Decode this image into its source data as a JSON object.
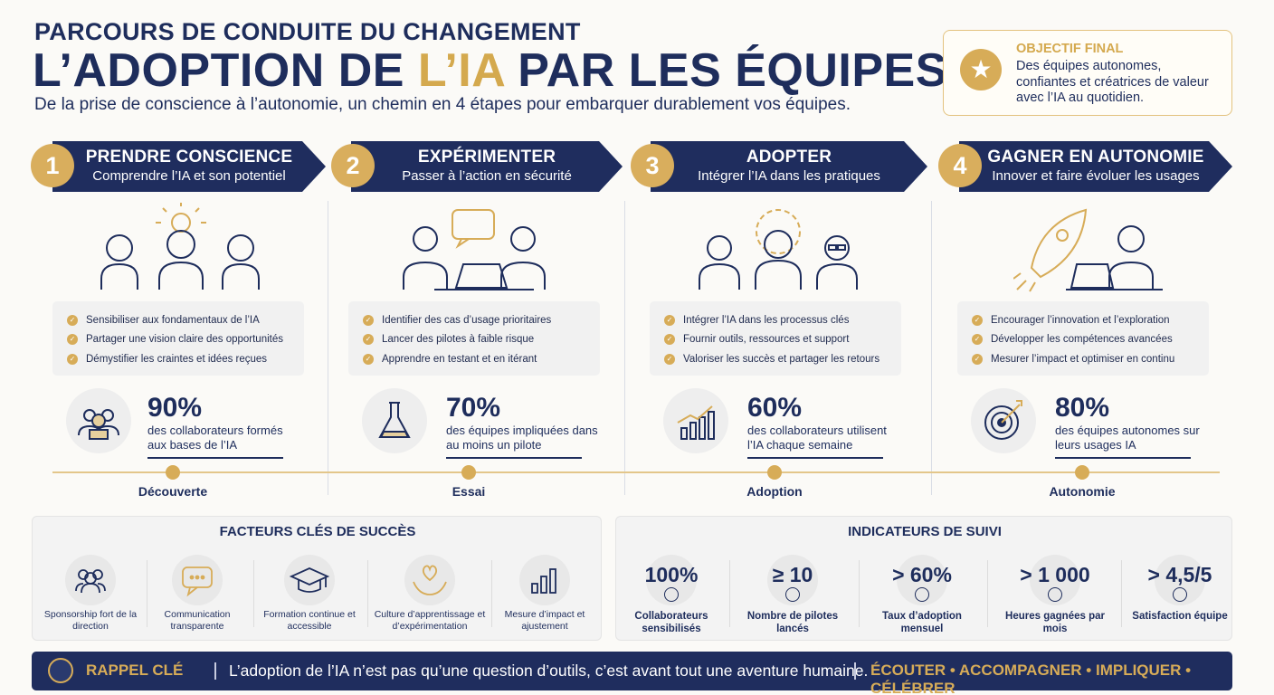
{
  "header": {
    "kicker": "PARCOURS DE CONDUITE DU CHANGEMENT",
    "title_part1": "L’ADOPTION DE ",
    "title_highlight": "L’IA",
    "title_part2": " PAR LES ÉQUIPES",
    "subtitle": "De la prise de conscience à l’autonomie, un chemin en 4 étapes pour embarquer durablement vos équipes."
  },
  "objective": {
    "label": "OBJECTIF FINAL",
    "text": "Des équipes autonomes, confiantes et créatrices de valeur avec l’IA au quotidien.",
    "icon": "star-icon"
  },
  "steps": [
    {
      "number": "1",
      "title": "PRENDRE CONSCIENCE",
      "subtitle": "Comprendre l’IA et son potentiel",
      "checklist": [
        "Sensibiliser aux fondamentaux de l’IA",
        "Partager une vision claire des opportunités",
        "Démystifier les craintes et idées reçues"
      ],
      "stat_value": "90%",
      "stat_text": "des collaborateurs formés aux bases de l’IA",
      "stage_label": "Découverte",
      "icon": "people-lightbulb-icon",
      "stat_icon": "group-icon"
    },
    {
      "number": "2",
      "title": "EXPÉRIMENTER",
      "subtitle": "Passer à l’action en sécurité",
      "checklist": [
        "Identifier des cas d’usage prioritaires",
        "Lancer des pilotes à faible risque",
        "Apprendre en testant et en itérant"
      ],
      "stat_value": "70%",
      "stat_text": "des équipes impliquées dans au moins un pilote",
      "stage_label": "Essai",
      "icon": "collaboration-laptop-icon",
      "stat_icon": "flask-icon"
    },
    {
      "number": "3",
      "title": "ADOPTER",
      "subtitle": "Intégrer l’IA dans les pratiques",
      "checklist": [
        "Intégrer l’IA dans les processus clés",
        "Fournir outils, ressources et support",
        "Valoriser les succès et partager les retours"
      ],
      "stat_value": "60%",
      "stat_text": "des collaborateurs utilisent l’IA chaque semaine",
      "stage_label": "Adoption",
      "icon": "team-gear-icon",
      "stat_icon": "growth-chart-icon"
    },
    {
      "number": "4",
      "title": "GAGNER EN AUTONOMIE",
      "subtitle": "Innover et faire évoluer les usages",
      "checklist": [
        "Encourager l’innovation et l’exploration",
        "Développer les compétences avancées",
        "Mesurer l’impact et optimiser en continu"
      ],
      "stat_value": "80%",
      "stat_text": "des équipes autonomes sur leurs usages IA",
      "stage_label": "Autonomie",
      "icon": "rocket-laptop-icon",
      "stat_icon": "target-icon"
    }
  ],
  "success_factors": {
    "title": "FACTEURS CLÉS DE SUCCÈS",
    "items": [
      {
        "label": "Sponsorship fort de la direction",
        "icon": "leaders-icon"
      },
      {
        "label": "Communication transparente",
        "icon": "speech-bubble-icon"
      },
      {
        "label": "Formation continue et accessible",
        "icon": "graduation-cap-icon"
      },
      {
        "label": "Culture d’apprentissage et d’expérimentation",
        "icon": "heart-hands-icon"
      },
      {
        "label": "Mesure d’impact et ajustement",
        "icon": "bar-chart-icon"
      }
    ]
  },
  "indicators": {
    "title": "INDICATEURS DE SUIVI",
    "items": [
      {
        "value": "100%",
        "label": "Collaborateurs sensibilisés"
      },
      {
        "value": "≥ 10",
        "label": "Nombre de pilotes lancés"
      },
      {
        "value": "> 60%",
        "label": "Taux d’adoption mensuel"
      },
      {
        "value": "> 1 000",
        "label": "Heures gagnées par mois"
      },
      {
        "value": "> 4,5/5",
        "label": "Satisfaction équipe"
      }
    ]
  },
  "footer": {
    "label": "RAPPEL CLÉ",
    "message": "L’adoption de l’IA n’est pas qu’une question d’outils, c’est avant tout une aventure humaine.",
    "motto": "ÉCOUTER • ACCOMPAGNER • IMPLIQUER • CÉLÉBRER",
    "icon": "lightbulb-icon"
  },
  "colors": {
    "navy": "#1f2d5e",
    "gold": "#d7ac58",
    "panel": "#f3f3f3"
  }
}
